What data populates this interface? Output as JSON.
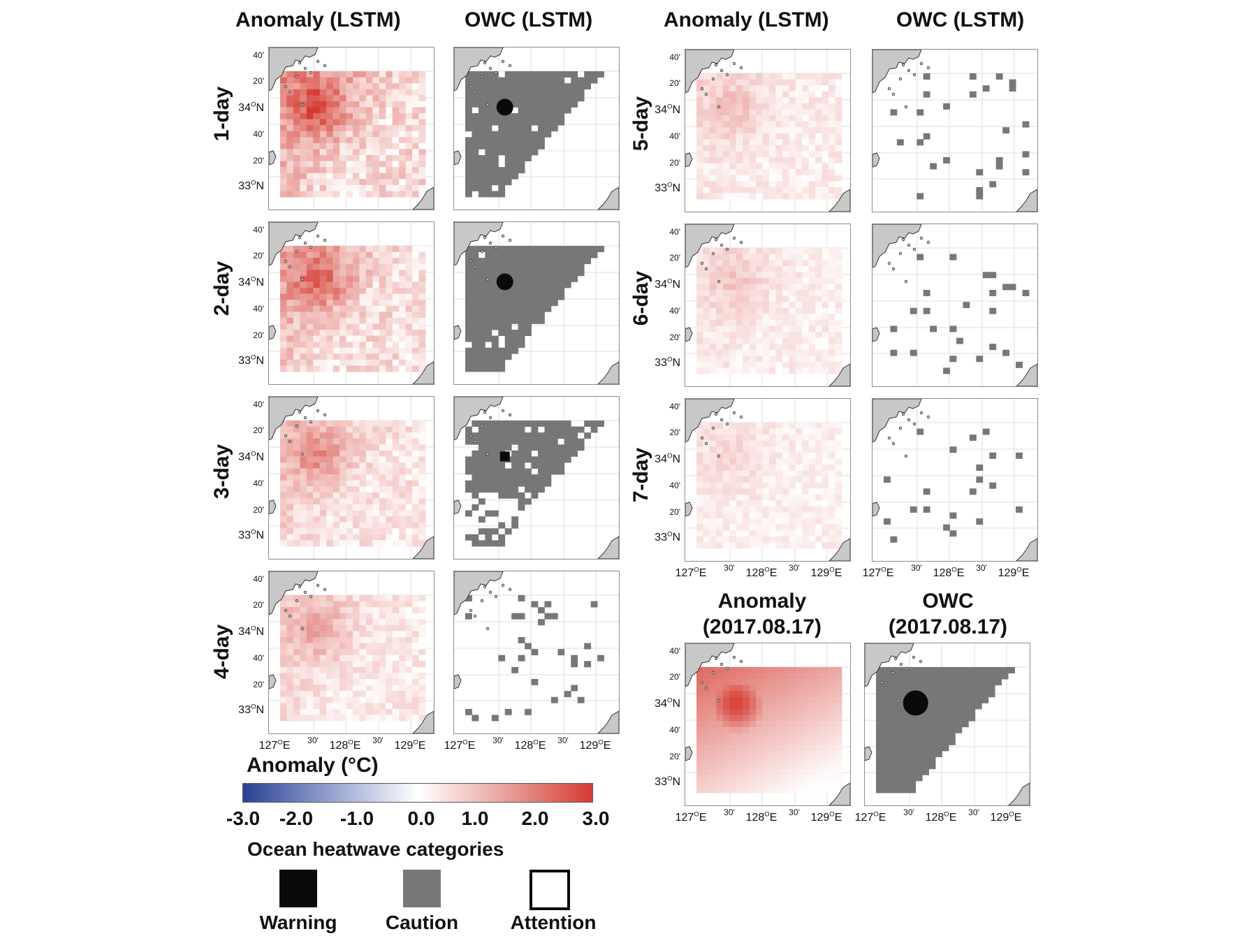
{
  "column_titles": [
    "Anomaly (LSTM)",
    "OWC (LSTM)",
    "Anomaly (LSTM)",
    "OWC (LSTM)"
  ],
  "row_labels": [
    "1-day",
    "2-day",
    "3-day",
    "4-day",
    "5-day",
    "6-day",
    "7-day"
  ],
  "observed_titles": {
    "anomaly": [
      "Anomaly",
      "(2017.08.17)"
    ],
    "owc": [
      "OWC",
      "(2017.08.17)"
    ]
  },
  "lat_ticks": [
    "40'",
    "20'",
    "34ON",
    "40'",
    "20'",
    "33ON"
  ],
  "lon_ticks": [
    "127OE",
    "30'",
    "128OE",
    "30'",
    "129OE"
  ],
  "colorbar": {
    "title": "Anomaly (°C)",
    "ticks": [
      "-3.0",
      "-2.0",
      "-1.0",
      "0.0",
      "1.0",
      "2.0",
      "3.0"
    ],
    "colors": {
      "min": "#2b3f93",
      "mid": "#ffffff",
      "max": "#d43c32"
    }
  },
  "categories": {
    "title": "Ocean heatwave categories",
    "items": [
      {
        "label": "Warning",
        "color": "#0a0a0a"
      },
      {
        "label": "Caution",
        "color": "#777777"
      },
      {
        "label": "Attention",
        "color": "#ffffff"
      }
    ]
  },
  "heatwave_strength": [
    1.0,
    0.85,
    0.6,
    0.45,
    0.3,
    0.27,
    0.18
  ]
}
